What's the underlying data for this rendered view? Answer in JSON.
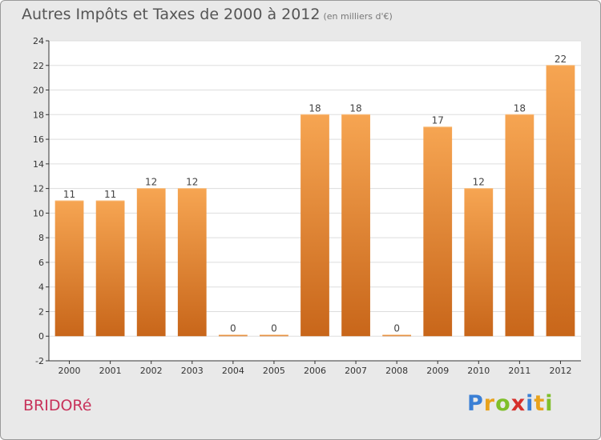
{
  "header": {
    "title": "Autres Impôts et Taxes de 2000 à 2012",
    "unit": "(en milliers d'€)"
  },
  "footer": {
    "commune": "BRIDORé",
    "logo_letters": [
      {
        "char": "P",
        "color": "#3a7fd5"
      },
      {
        "char": "r",
        "color": "#e8a21c"
      },
      {
        "char": "o",
        "color": "#7fbf2a"
      },
      {
        "char": "x",
        "color": "#d6302b"
      },
      {
        "char": "i",
        "color": "#3a7fd5"
      },
      {
        "char": "t",
        "color": "#e8a21c"
      },
      {
        "char": "i",
        "color": "#7fbf2a"
      }
    ]
  },
  "colors": {
    "bar_light": "#f6a552",
    "bar_dark": "#c8661a",
    "plot_bg": "#ffffff",
    "grid": "#dddddd"
  },
  "chart_data": {
    "type": "bar",
    "title": "Autres Impôts et Taxes de 2000 à 2012",
    "subtitle": "(en milliers d'€)",
    "categories": [
      "2000",
      "2001",
      "2002",
      "2003",
      "2004",
      "2005",
      "2006",
      "2007",
      "2008",
      "2009",
      "2010",
      "2011",
      "2012"
    ],
    "values": [
      11,
      11,
      12,
      12,
      0,
      0,
      18,
      18,
      0,
      17,
      12,
      18,
      22
    ],
    "value_labels": [
      "11",
      "11",
      "12",
      "12",
      "0",
      "0",
      "18",
      "18",
      "0",
      "17",
      "12",
      "18",
      "22"
    ],
    "ylim": [
      -2,
      24
    ],
    "yticks": [
      -2,
      0,
      2,
      4,
      6,
      8,
      10,
      12,
      14,
      16,
      18,
      20,
      22,
      24
    ],
    "grid": true,
    "legend": "none"
  }
}
